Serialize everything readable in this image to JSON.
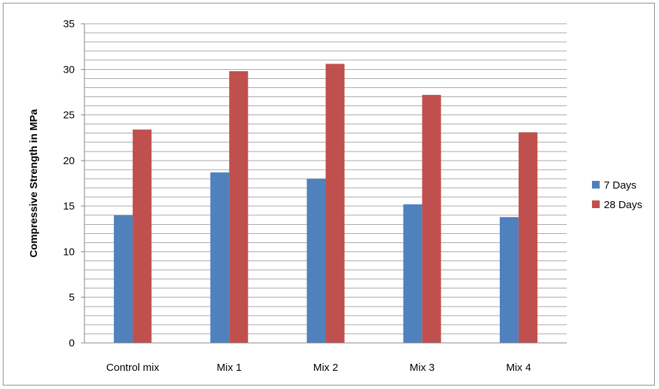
{
  "chart_data": {
    "type": "bar",
    "categories": [
      "Control mix",
      "Mix 1",
      "Mix 2",
      "Mix 3",
      "Mix 4"
    ],
    "series": [
      {
        "name": "7 Days",
        "values": [
          14.0,
          18.7,
          18.0,
          15.2,
          13.8
        ],
        "color": "#4f81bd"
      },
      {
        "name": "28 Days",
        "values": [
          23.4,
          29.8,
          30.6,
          27.2,
          23.1
        ],
        "color": "#c0504d"
      }
    ],
    "title": "",
    "xlabel": "",
    "ylabel": "Compressive Strength in MPa",
    "ylim": [
      0,
      35
    ],
    "yticks": [
      0,
      5,
      10,
      15,
      20,
      25,
      30,
      35
    ],
    "minor_gridline_step": 1,
    "grid": true,
    "legend_position": "right"
  }
}
